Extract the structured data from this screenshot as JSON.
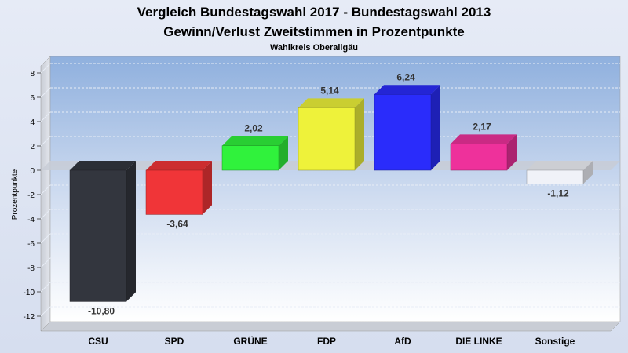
{
  "chart_data": {
    "type": "bar",
    "title": "Vergleich Bundestagswahl 2017 - Bundestagswahl 2013",
    "subtitle": "Gewinn/Verlust Zweitstimmen in Prozentpunkte",
    "subsubtitle": "Wahlkreis Oberallgäu",
    "xlabel": "",
    "ylabel": "Prozentpunkte",
    "categories": [
      "CSU",
      "SPD",
      "GRÜNE",
      "FDP",
      "AfD",
      "DIE LINKE",
      "Sonstige"
    ],
    "values": [
      -10.8,
      -3.64,
      2.02,
      5.14,
      6.24,
      2.17,
      -1.12
    ],
    "value_labels": [
      "-10,80",
      "-3,64",
      "2,02",
      "5,14",
      "6,24",
      "2,17",
      "-1,12"
    ],
    "colors": [
      "#33363e",
      "#f03538",
      "#30f23c",
      "#eef23a",
      "#2a2cfb",
      "#ee319b",
      "#f0f2f8"
    ],
    "yticks": [
      8,
      6,
      4,
      2,
      0,
      -2,
      -4,
      -6,
      -8,
      -10,
      -12
    ],
    "ylim": [
      -13.5,
      9
    ],
    "grid": true,
    "legend": "none"
  }
}
